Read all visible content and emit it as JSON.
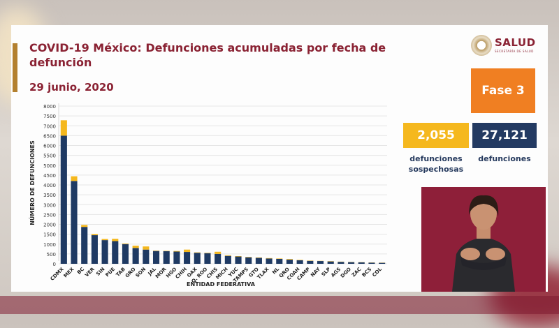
{
  "title": "COVID-19 México: Defunciones acumuladas por fecha de defunción",
  "date": "29  junio, 2020",
  "logo": {
    "name": "SALUD",
    "subtitle": "SECRETARÍA DE SALUD"
  },
  "phase": "Fase 3",
  "stats": {
    "suspected": {
      "value": "2,055",
      "label": "defunciones sospechosas"
    },
    "confirmed": {
      "value": "27,121",
      "label": "defunciones"
    }
  },
  "colors": {
    "confirmed": "#1f3a63",
    "suspected": "#f5b81e",
    "title": "#8a2233",
    "phase": "#f07f22"
  },
  "chart_data": {
    "type": "bar",
    "stacked": true,
    "xlabel": "ENTIDAD FEDERATIVA",
    "ylabel": "NÚMERO DE DEFUNCIONES",
    "ylim": [
      0,
      8000
    ],
    "yticks": [
      0,
      500,
      1000,
      1500,
      2000,
      2500,
      3000,
      3500,
      4000,
      4500,
      5000,
      5500,
      6000,
      6500,
      7000,
      7500,
      8000
    ],
    "grid": true,
    "categories": [
      "CDMX",
      "MEX",
      "BC",
      "VER",
      "SIN",
      "PUE",
      "TAB",
      "GRO",
      "SON",
      "JAL",
      "MOR",
      "HGO",
      "CHIH",
      "OAX",
      "Q. ROO",
      "CHIS",
      "MICH",
      "YUC",
      "TAMPS",
      "GTO",
      "TLAX",
      "NL",
      "QRO",
      "COAH",
      "CAMP",
      "NAY",
      "SLP",
      "AGS",
      "DGO",
      "ZAC",
      "BCS",
      "COL"
    ],
    "series": [
      {
        "values": [
          6500,
          4200,
          1870,
          1450,
          1200,
          1150,
          1000,
          800,
          720,
          650,
          640,
          620,
          600,
          560,
          540,
          500,
          400,
          370,
          330,
          300,
          270,
          250,
          210,
          180,
          150,
          140,
          120,
          100,
          85,
          75,
          60,
          50
        ]
      },
      {
        "values": [
          780,
          240,
          100,
          60,
          60,
          120,
          30,
          120,
          160,
          20,
          20,
          30,
          120,
          20,
          20,
          110,
          30,
          20,
          20,
          20,
          20,
          20,
          30,
          20,
          15,
          10,
          15,
          10,
          10,
          10,
          10,
          10
        ]
      }
    ]
  }
}
